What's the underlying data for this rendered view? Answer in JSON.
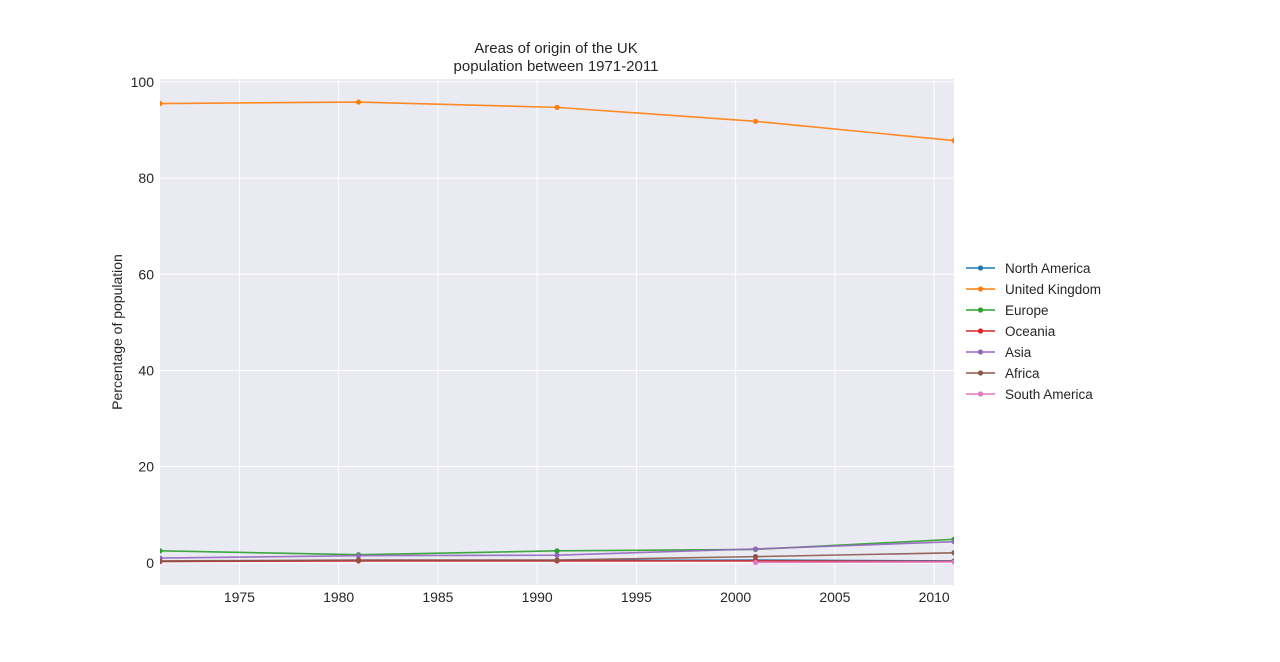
{
  "chart_data": {
    "type": "line",
    "title_lines": [
      "Areas of origin of the UK",
      "population between 1971-2011"
    ],
    "xlabel": "",
    "ylabel": "Percentage of population",
    "xlim": [
      1971,
      2011
    ],
    "ylim": [
      -4.6,
      100.6
    ],
    "x_ticks": [
      1975,
      1980,
      1985,
      1990,
      1995,
      2000,
      2005,
      2010
    ],
    "y_ticks": [
      0,
      20,
      40,
      60,
      80,
      100
    ],
    "grid": true,
    "legend_position": "right",
    "series": [
      {
        "name": "North America",
        "color": "#1f77b4",
        "x": [
          1971,
          1981,
          1991,
          2001,
          2011
        ],
        "y": [
          0.3,
          0.5,
          0.5,
          0.6,
          0.4
        ]
      },
      {
        "name": "United Kingdom",
        "color": "#ff7f0e",
        "x": [
          1971,
          1981,
          1991,
          2001,
          2011
        ],
        "y": [
          95.5,
          95.8,
          94.7,
          91.8,
          87.8
        ]
      },
      {
        "name": "Europe",
        "color": "#2ca02c",
        "x": [
          1971,
          1981,
          1991,
          2001,
          2011
        ],
        "y": [
          2.5,
          1.7,
          2.5,
          2.8,
          4.9
        ]
      },
      {
        "name": "Oceania",
        "color": "#d62728",
        "x": [
          1971,
          1981,
          1991,
          2001,
          2011
        ],
        "y": [
          0.3,
          0.4,
          0.4,
          0.4,
          0.3
        ]
      },
      {
        "name": "Asia",
        "color": "#9467bd",
        "x": [
          1971,
          1981,
          1991,
          2001,
          2011
        ],
        "y": [
          1.0,
          1.5,
          1.6,
          2.9,
          4.4
        ]
      },
      {
        "name": "Africa",
        "color": "#8c564b",
        "x": [
          1971,
          1981,
          1991,
          2001,
          2011
        ],
        "y": [
          0.4,
          0.6,
          0.6,
          1.3,
          2.1
        ]
      },
      {
        "name": "South America",
        "color": "#e377c2",
        "x": [
          2001,
          2011
        ],
        "y": [
          0.1,
          0.2
        ]
      }
    ]
  }
}
